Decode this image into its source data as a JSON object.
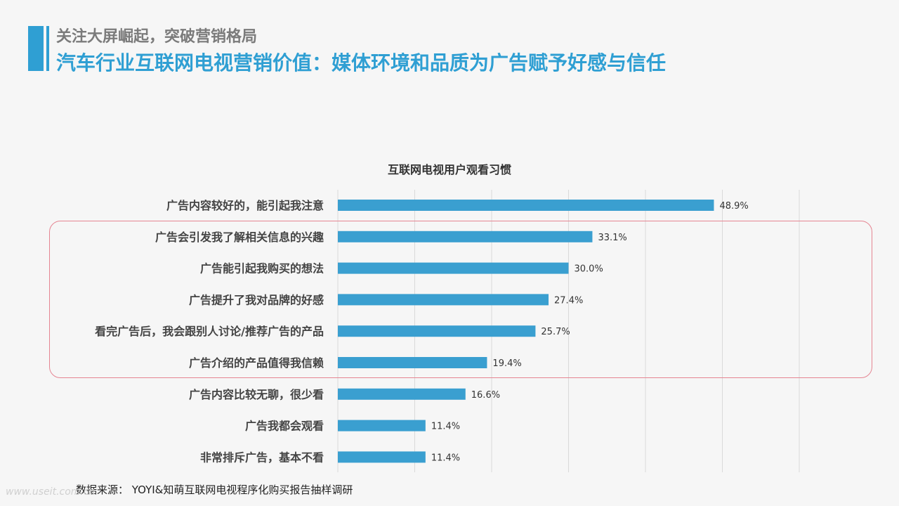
{
  "header": {
    "subtitle": "关注大屏崛起，突破营销格局",
    "title": "汽车行业互联网电视营销价值：媒体环境和品质为广告赋予好感与信任"
  },
  "source": "数据来源： YOYI&知萌互联网电视程序化购买报告抽样调研",
  "watermark": "www.useit.com.cn",
  "colors": {
    "accent": "#2f9fd3",
    "bar": "#3a9fd0",
    "highlight": "#e58592"
  },
  "chart_data": {
    "type": "bar",
    "orientation": "horizontal",
    "title": "互联网电视用户观看习惯",
    "categories": [
      "广告内容较好的，能引起我注意",
      "广告会引发我了解相关信息的兴趣",
      "广告能引起我购买的想法",
      "广告提升了我对品牌的好感",
      "看完广告后，我会跟别人讨论/推荐广告的产品",
      "广告介绍的产品值得我信赖",
      "广告内容比较无聊，很少看",
      "广告我都会观看",
      "非常排斥广告，基本不看"
    ],
    "values": [
      48.9,
      33.1,
      30.0,
      27.4,
      25.7,
      19.4,
      16.6,
      11.4,
      11.4
    ],
    "value_labels": [
      "48.9%",
      "33.1%",
      "30.0%",
      "27.4%",
      "25.7%",
      "19.4%",
      "16.6%",
      "11.4%",
      "11.4%"
    ],
    "xlim": [
      0,
      60
    ],
    "grid": true,
    "highlighted_range": [
      1,
      5
    ]
  }
}
